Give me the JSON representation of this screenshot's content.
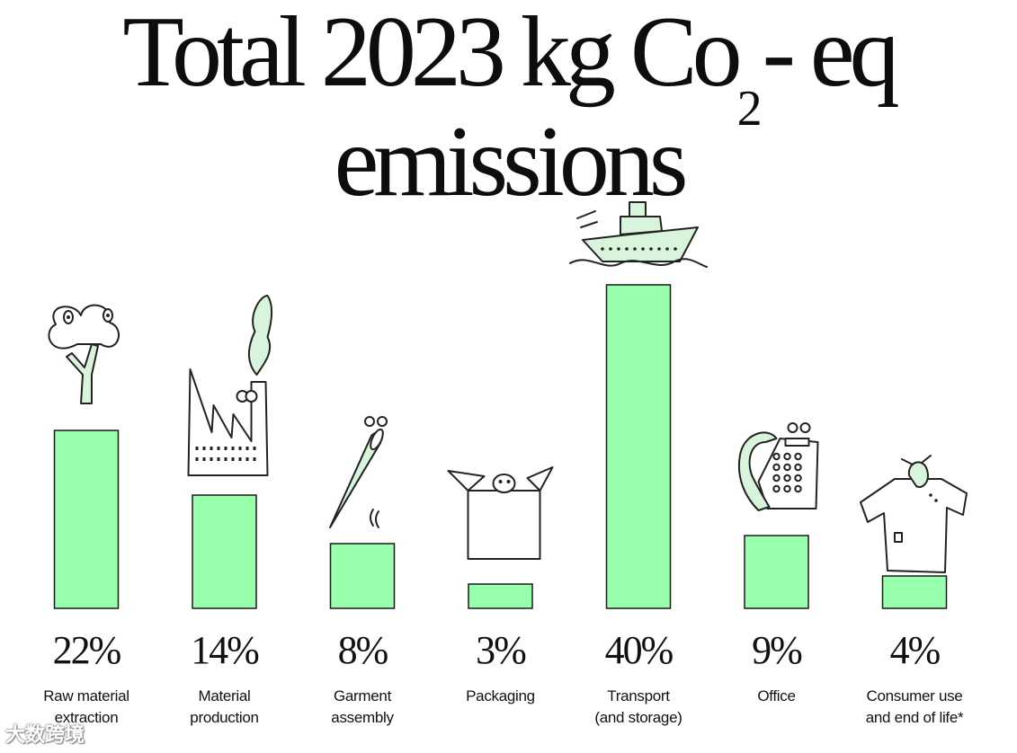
{
  "title": {
    "line1_main": "Total 2023 kg Co",
    "line1_subscript": "2",
    "line1_tail": "- eq",
    "line2": "emissions"
  },
  "watermark": "大数跨境",
  "colors": {
    "bar_fill": "#98ffad",
    "bar_stroke": "#1a1a1a",
    "illustration_accent": "#d8f5dc"
  },
  "chart_data": {
    "type": "bar",
    "title": "Total 2023 kg Co2- eq emissions",
    "unit": "%",
    "grid": false,
    "legend": "none",
    "ylim": [
      0,
      40
    ],
    "categories": [
      "Raw material extraction",
      "Material production",
      "Garment assembly",
      "Packaging",
      "Transport (and storage)",
      "Office",
      "Consumer use and end of life*"
    ],
    "category_label_lines": [
      [
        "Raw material",
        "extraction"
      ],
      [
        "Material",
        "production"
      ],
      [
        "Garment",
        "assembly"
      ],
      [
        "Packaging"
      ],
      [
        "Transport",
        "(and storage)"
      ],
      [
        "Office"
      ],
      [
        "Consumer use",
        "and end of life*"
      ]
    ],
    "values": [
      22,
      14,
      8,
      3,
      40,
      9,
      4
    ],
    "value_labels": [
      "22%",
      "14%",
      "8%",
      "3%",
      "40%",
      "9%",
      "4%"
    ],
    "illustrations": [
      "tree-icon",
      "factory-icon",
      "needle-icon",
      "box-icon",
      "ship-icon",
      "telephone-icon",
      "tshirt-icon"
    ]
  }
}
